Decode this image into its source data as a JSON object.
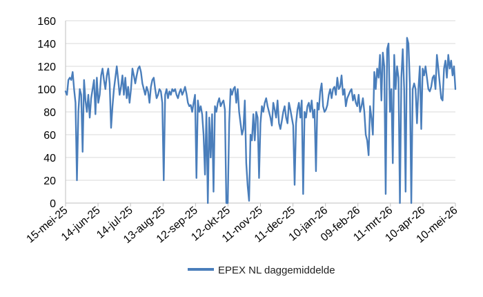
{
  "chart_data": {
    "type": "line",
    "title": "",
    "xlabel": "",
    "ylabel": "",
    "ylim": [
      0,
      160
    ],
    "yticks": [
      0,
      20,
      40,
      60,
      80,
      100,
      120,
      140,
      160
    ],
    "x_tick_labels": [
      "15-mei-25",
      "14-jun-25",
      "14-jul-25",
      "13-aug-25",
      "12-sep-25",
      "12-okt-25",
      "11-nov-25",
      "11-dec-25",
      "10-jan-26",
      "09-feb-26",
      "11-mrt-26",
      "10-apr-26",
      "10-mei-26"
    ],
    "grid": "horizontal",
    "legend_position": "bottom",
    "series": [
      {
        "name": "EPEX NL daggemiddelde",
        "color": "#4a7ebb",
        "x_unit": "days since 15-mei-25",
        "points": [
          [
            0,
            98
          ],
          [
            1,
            95
          ],
          [
            2,
            108
          ],
          [
            3,
            110
          ],
          [
            4,
            108
          ],
          [
            5,
            115
          ],
          [
            6,
            100
          ],
          [
            7,
            88
          ],
          [
            8,
            20
          ],
          [
            9,
            80
          ],
          [
            10,
            100
          ],
          [
            11,
            95
          ],
          [
            12,
            45
          ],
          [
            13,
            108
          ],
          [
            14,
            90
          ],
          [
            15,
            80
          ],
          [
            16,
            95
          ],
          [
            17,
            75
          ],
          [
            18,
            92
          ],
          [
            19,
            100
          ],
          [
            20,
            108
          ],
          [
            21,
            78
          ],
          [
            22,
            110
          ],
          [
            23,
            88
          ],
          [
            24,
            95
          ],
          [
            25,
            112
          ],
          [
            26,
            118
          ],
          [
            27,
            108
          ],
          [
            28,
            100
          ],
          [
            29,
            112
          ],
          [
            30,
            118
          ],
          [
            31,
            105
          ],
          [
            32,
            66
          ],
          [
            33,
            85
          ],
          [
            34,
            100
          ],
          [
            35,
            110
          ],
          [
            36,
            120
          ],
          [
            37,
            108
          ],
          [
            38,
            95
          ],
          [
            39,
            102
          ],
          [
            40,
            112
          ],
          [
            41,
            95
          ],
          [
            42,
            110
          ],
          [
            43,
            92
          ],
          [
            44,
            102
          ],
          [
            45,
            88
          ],
          [
            46,
            100
          ],
          [
            47,
            118
          ],
          [
            48,
            112
          ],
          [
            49,
            105
          ],
          [
            50,
            112
          ],
          [
            51,
            118
          ],
          [
            52,
            120
          ],
          [
            53,
            115
          ],
          [
            54,
            105
          ],
          [
            55,
            100
          ],
          [
            56,
            95
          ],
          [
            57,
            102
          ],
          [
            58,
            98
          ],
          [
            59,
            88
          ],
          [
            60,
            102
          ],
          [
            61,
            108
          ],
          [
            62,
            110
          ],
          [
            63,
            100
          ],
          [
            64,
            92
          ],
          [
            65,
            95
          ],
          [
            66,
            100
          ],
          [
            67,
            98
          ],
          [
            68,
            88
          ],
          [
            69,
            20
          ],
          [
            70,
            95
          ],
          [
            71,
            100
          ],
          [
            72,
            92
          ],
          [
            73,
            98
          ],
          [
            74,
            95
          ],
          [
            75,
            100
          ],
          [
            76,
            98
          ],
          [
            77,
            100
          ],
          [
            78,
            95
          ],
          [
            79,
            92
          ],
          [
            80,
            97
          ],
          [
            81,
            100
          ],
          [
            82,
            95
          ],
          [
            83,
            98
          ],
          [
            84,
            102
          ],
          [
            85,
            96
          ],
          [
            86,
            88
          ],
          [
            87,
            85
          ],
          [
            88,
            86
          ],
          [
            89,
            80
          ],
          [
            90,
            88
          ],
          [
            91,
            95
          ],
          [
            92,
            22
          ],
          [
            93,
            90
          ],
          [
            94,
            80
          ],
          [
            95,
            85
          ],
          [
            96,
            78
          ],
          [
            97,
            60
          ],
          [
            98,
            25
          ],
          [
            99,
            80
          ],
          [
            100,
            0
          ],
          [
            101,
            75
          ],
          [
            102,
            40
          ],
          [
            103,
            78
          ],
          [
            104,
            10
          ],
          [
            105,
            85
          ],
          [
            106,
            80
          ],
          [
            107,
            88
          ],
          [
            108,
            92
          ],
          [
            109,
            85
          ],
          [
            110,
            88
          ],
          [
            111,
            90
          ],
          [
            112,
            82
          ],
          [
            113,
            0
          ],
          [
            114,
            0
          ],
          [
            115,
            70
          ],
          [
            116,
            100
          ],
          [
            117,
            95
          ],
          [
            118,
            100
          ],
          [
            119,
            102
          ],
          [
            120,
            88
          ],
          [
            121,
            100
          ],
          [
            122,
            80
          ],
          [
            123,
            70
          ],
          [
            124,
            60
          ],
          [
            125,
            65
          ],
          [
            126,
            90
          ],
          [
            127,
            35
          ],
          [
            128,
            15
          ],
          [
            129,
            2
          ],
          [
            130,
            60
          ],
          [
            131,
            55
          ],
          [
            132,
            78
          ],
          [
            133,
            55
          ],
          [
            134,
            80
          ],
          [
            135,
            75
          ],
          [
            136,
            22
          ],
          [
            137,
            70
          ],
          [
            138,
            85
          ],
          [
            139,
            80
          ],
          [
            140,
            88
          ],
          [
            141,
            92
          ],
          [
            142,
            85
          ],
          [
            143,
            80
          ],
          [
            144,
            75
          ],
          [
            145,
            68
          ],
          [
            146,
            88
          ],
          [
            147,
            82
          ],
          [
            148,
            75
          ],
          [
            149,
            90
          ],
          [
            150,
            70
          ],
          [
            151,
            65
          ],
          [
            152,
            72
          ],
          [
            153,
            80
          ],
          [
            154,
            85
          ],
          [
            155,
            75
          ],
          [
            156,
            70
          ],
          [
            157,
            88
          ],
          [
            158,
            82
          ],
          [
            159,
            75
          ],
          [
            160,
            68
          ],
          [
            161,
            16
          ],
          [
            162,
            70
          ],
          [
            163,
            82
          ],
          [
            164,
            88
          ],
          [
            165,
            75
          ],
          [
            166,
            90
          ],
          [
            167,
            8
          ],
          [
            168,
            80
          ],
          [
            169,
            75
          ],
          [
            170,
            85
          ],
          [
            171,
            88
          ],
          [
            172,
            80
          ],
          [
            173,
            90
          ],
          [
            174,
            75
          ],
          [
            175,
            82
          ],
          [
            176,
            28
          ],
          [
            177,
            88
          ],
          [
            178,
            82
          ],
          [
            179,
            98
          ],
          [
            180,
            105
          ],
          [
            181,
            85
          ],
          [
            182,
            80
          ],
          [
            183,
            82
          ],
          [
            184,
            86
          ],
          [
            185,
            95
          ],
          [
            186,
            100
          ],
          [
            187,
            92
          ],
          [
            188,
            100
          ],
          [
            189,
            102
          ],
          [
            190,
            95
          ],
          [
            191,
            110
          ],
          [
            192,
            100
          ],
          [
            193,
            102
          ],
          [
            194,
            112
          ],
          [
            195,
            95
          ],
          [
            196,
            100
          ],
          [
            197,
            85
          ],
          [
            198,
            92
          ],
          [
            199,
            95
          ],
          [
            200,
            98
          ],
          [
            201,
            100
          ],
          [
            202,
            90
          ],
          [
            203,
            95
          ],
          [
            204,
            88
          ],
          [
            205,
            85
          ],
          [
            206,
            95
          ],
          [
            207,
            80
          ],
          [
            208,
            85
          ],
          [
            209,
            92
          ],
          [
            210,
            80
          ],
          [
            211,
            60
          ],
          [
            212,
            55
          ],
          [
            213,
            42
          ],
          [
            214,
            85
          ],
          [
            215,
            75
          ],
          [
            216,
            60
          ],
          [
            217,
            115
          ],
          [
            218,
            100
          ],
          [
            219,
            118
          ],
          [
            220,
            110
          ],
          [
            221,
            130
          ],
          [
            222,
            90
          ],
          [
            223,
            132
          ],
          [
            224,
            120
          ],
          [
            225,
            8
          ],
          [
            226,
            135
          ],
          [
            227,
            140
          ],
          [
            228,
            80
          ],
          [
            229,
            100
          ],
          [
            230,
            35
          ],
          [
            231,
            130
          ],
          [
            232,
            100
          ],
          [
            233,
            120
          ],
          [
            234,
            110
          ],
          [
            235,
            0
          ],
          [
            236,
            110
          ],
          [
            237,
            135
          ],
          [
            238,
            100
          ],
          [
            239,
            10
          ],
          [
            240,
            145
          ],
          [
            241,
            140
          ],
          [
            242,
            105
          ],
          [
            243,
            0
          ],
          [
            244,
            100
          ],
          [
            245,
            105
          ],
          [
            246,
            100
          ],
          [
            247,
            70
          ],
          [
            248,
            100
          ],
          [
            249,
            120
          ],
          [
            250,
            65
          ],
          [
            251,
            118
          ],
          [
            252,
            112
          ],
          [
            253,
            120
          ],
          [
            254,
            110
          ],
          [
            255,
            100
          ],
          [
            256,
            98
          ],
          [
            257,
            102
          ],
          [
            258,
            110
          ],
          [
            259,
            112
          ],
          [
            260,
            100
          ],
          [
            261,
            130
          ],
          [
            262,
            118
          ],
          [
            263,
            105
          ],
          [
            264,
            92
          ],
          [
            265,
            90
          ],
          [
            266,
            118
          ],
          [
            267,
            125
          ],
          [
            268,
            110
          ],
          [
            269,
            130
          ],
          [
            270,
            118
          ],
          [
            271,
            125
          ],
          [
            272,
            112
          ],
          [
            273,
            120
          ],
          [
            274,
            100
          ]
        ]
      }
    ]
  }
}
